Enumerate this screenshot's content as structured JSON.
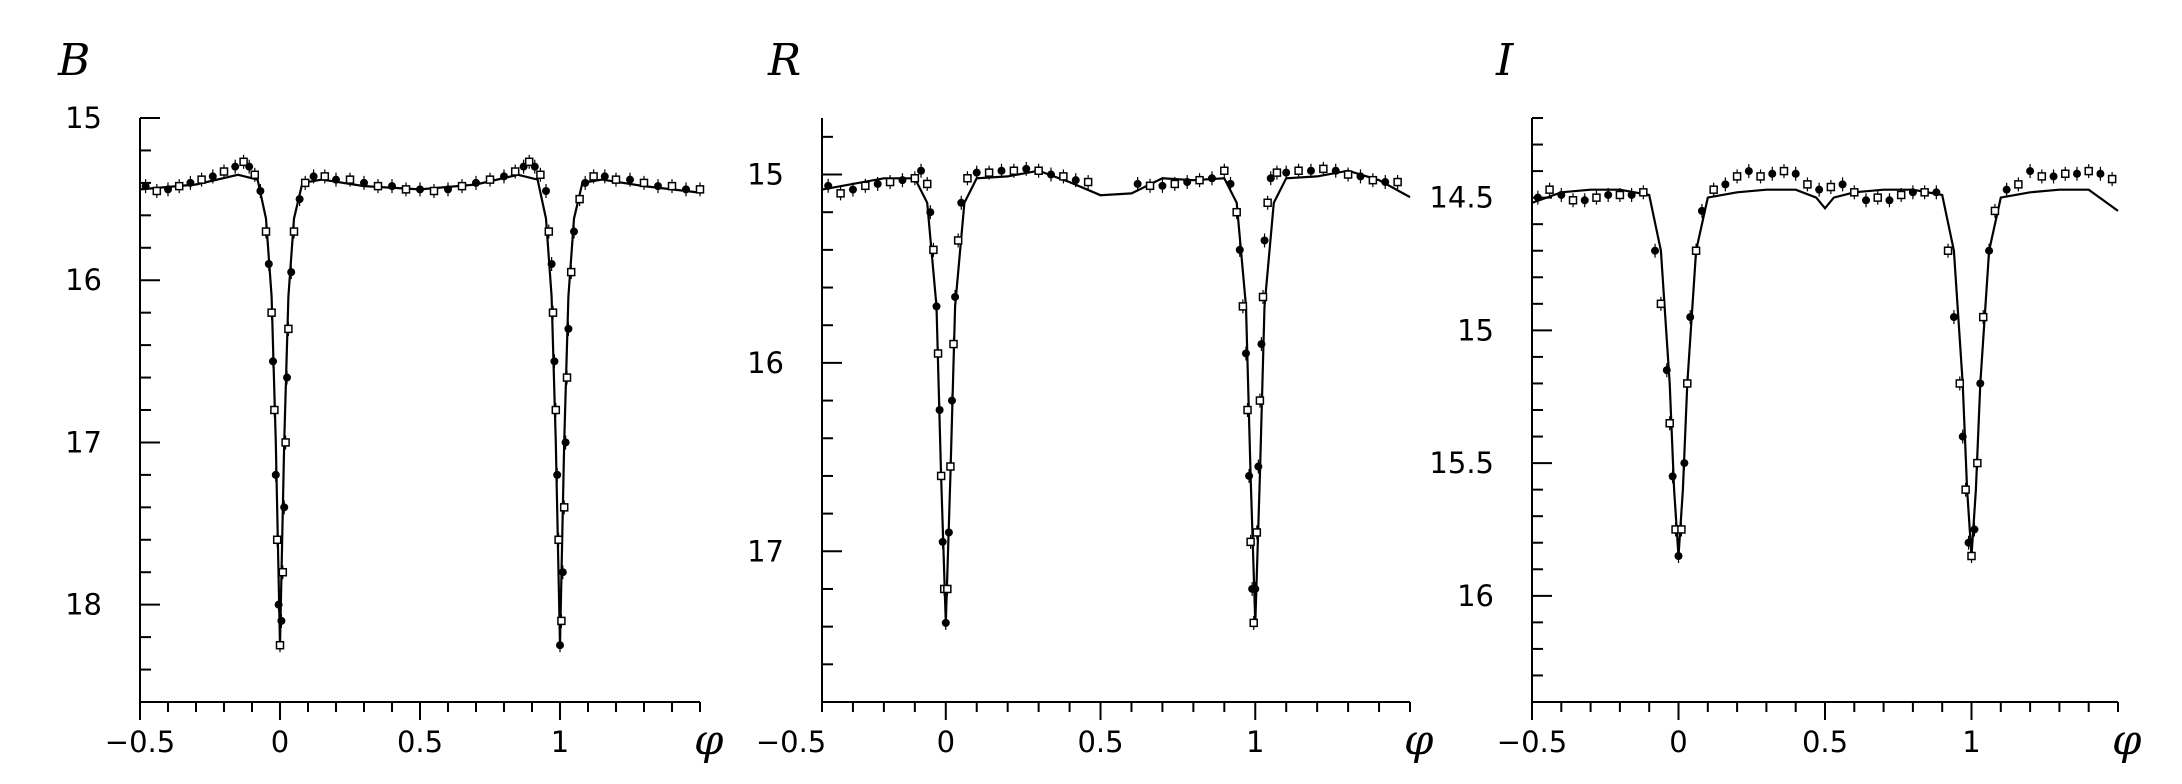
{
  "chart_data": [
    {
      "type": "scatter",
      "title": "B",
      "xlabel": "φ",
      "ylabel": "",
      "xlim": [
        -0.5,
        1.5
      ],
      "ylim": [
        18.6,
        15
      ],
      "y_inverted": true,
      "x_ticks": [
        -0.5,
        0,
        0.5,
        1
      ],
      "x_tick_labels": [
        "−0.5",
        "0",
        "0.5",
        "1"
      ],
      "y_ticks": [
        15,
        16,
        17,
        18
      ],
      "y_tick_labels": [
        "15",
        "16",
        "17",
        "18"
      ],
      "grid": false,
      "series": [
        {
          "marker": "points",
          "x": [
            -0.48,
            -0.44,
            -0.4,
            -0.36,
            -0.32,
            -0.28,
            -0.24,
            -0.2,
            -0.16,
            -0.13,
            -0.11,
            -0.09,
            -0.07,
            -0.05,
            -0.04,
            -0.03,
            -0.025,
            -0.02,
            -0.015,
            -0.01,
            -0.005,
            0,
            0.005,
            0.01,
            0.015,
            0.02,
            0.025,
            0.03,
            0.04,
            0.05,
            0.07,
            0.09,
            0.12,
            0.16,
            0.2,
            0.25,
            0.3,
            0.35,
            0.4,
            0.45,
            0.5,
            0.55,
            0.6,
            0.65,
            0.7,
            0.75,
            0.8,
            0.84,
            0.87,
            0.89,
            0.91,
            0.93,
            0.95,
            0.96,
            0.97,
            0.975,
            0.98,
            0.985,
            0.99,
            0.995,
            1,
            1.005,
            1.01,
            1.015,
            1.02,
            1.025,
            1.03,
            1.04,
            1.05,
            1.07,
            1.09,
            1.12,
            1.16,
            1.2,
            1.25,
            1.3,
            1.35,
            1.4,
            1.45,
            1.5
          ],
          "y": [
            15.42,
            15.45,
            15.44,
            15.42,
            15.4,
            15.38,
            15.36,
            15.33,
            15.3,
            15.27,
            15.3,
            15.35,
            15.45,
            15.7,
            15.9,
            16.2,
            16.5,
            16.8,
            17.2,
            17.6,
            18,
            18.25,
            18.1,
            17.8,
            17.4,
            17,
            16.6,
            16.3,
            15.95,
            15.7,
            15.5,
            15.4,
            15.36,
            15.36,
            15.38,
            15.38,
            15.4,
            15.42,
            15.42,
            15.44,
            15.44,
            15.45,
            15.44,
            15.42,
            15.4,
            15.38,
            15.36,
            15.33,
            15.3,
            15.27,
            15.3,
            15.35,
            15.45,
            15.7,
            15.9,
            16.2,
            16.5,
            16.8,
            17.2,
            17.6,
            18.25,
            18.1,
            17.8,
            17.4,
            17,
            16.6,
            16.3,
            15.95,
            15.7,
            15.5,
            15.4,
            15.36,
            15.36,
            15.38,
            15.38,
            15.4,
            15.42,
            15.42,
            15.44,
            15.44
          ]
        },
        {
          "marker": "line",
          "x": [
            -0.5,
            -0.3,
            -0.15,
            -0.08,
            -0.05,
            -0.03,
            -0.015,
            0,
            0.015,
            0.03,
            0.05,
            0.08,
            0.15,
            0.3,
            0.5,
            0.7,
            0.85,
            0.92,
            0.95,
            0.97,
            0.985,
            1,
            1.015,
            1.03,
            1.05,
            1.08,
            1.15,
            1.3,
            1.5
          ],
          "y": [
            15.44,
            15.41,
            15.35,
            15.38,
            15.62,
            16.1,
            17,
            18.25,
            17,
            16.1,
            15.62,
            15.4,
            15.38,
            15.42,
            15.44,
            15.41,
            15.35,
            15.38,
            15.62,
            16.1,
            17,
            18.25,
            17,
            16.1,
            15.62,
            15.4,
            15.38,
            15.42,
            15.46
          ]
        }
      ]
    },
    {
      "type": "scatter",
      "title": "R",
      "xlabel": "φ",
      "ylabel": "",
      "xlim": [
        -0.4,
        1.5
      ],
      "ylim": [
        17.8,
        14.7
      ],
      "y_inverted": true,
      "x_ticks": [
        -0.5,
        0,
        0.5,
        1
      ],
      "x_tick_labels": [
        "−0.5",
        "0",
        "0.5",
        "1"
      ],
      "y_ticks": [
        15,
        16,
        17
      ],
      "y_tick_labels": [
        "15",
        "16",
        "17"
      ],
      "grid": false,
      "series": [
        {
          "marker": "points",
          "x": [
            -0.38,
            -0.34,
            -0.3,
            -0.26,
            -0.22,
            -0.18,
            -0.14,
            -0.1,
            -0.08,
            -0.06,
            -0.05,
            -0.04,
            -0.03,
            -0.025,
            -0.02,
            -0.015,
            -0.01,
            -0.005,
            0,
            0.005,
            0.01,
            0.015,
            0.02,
            0.025,
            0.03,
            0.04,
            0.05,
            0.07,
            0.1,
            0.14,
            0.18,
            0.22,
            0.26,
            0.3,
            0.34,
            0.38,
            0.42,
            0.46,
            0.62,
            0.66,
            0.7,
            0.74,
            0.78,
            0.82,
            0.86,
            0.9,
            0.92,
            0.94,
            0.95,
            0.96,
            0.97,
            0.975,
            0.98,
            0.985,
            0.99,
            0.995,
            1,
            1.005,
            1.01,
            1.015,
            1.02,
            1.025,
            1.03,
            1.04,
            1.05,
            1.07,
            1.1,
            1.14,
            1.18,
            1.22,
            1.26,
            1.3,
            1.34,
            1.38,
            1.42,
            1.46
          ],
          "y": [
            15.06,
            15.1,
            15.08,
            15.06,
            15.05,
            15.04,
            15.03,
            15.02,
            14.98,
            15.05,
            15.2,
            15.4,
            15.7,
            15.95,
            16.25,
            16.6,
            16.95,
            17.2,
            17.38,
            17.2,
            16.9,
            16.55,
            16.2,
            15.9,
            15.65,
            15.35,
            15.15,
            15.02,
            14.99,
            14.99,
            14.98,
            14.98,
            14.97,
            14.98,
            15.0,
            15.01,
            15.03,
            15.04,
            15.05,
            15.06,
            15.06,
            15.05,
            15.04,
            15.03,
            15.02,
            14.98,
            15.05,
            15.2,
            15.4,
            15.7,
            15.95,
            16.25,
            16.6,
            16.95,
            17.2,
            17.38,
            17.2,
            16.9,
            16.55,
            16.2,
            15.9,
            15.65,
            15.35,
            15.15,
            15.02,
            14.99,
            14.99,
            14.98,
            14.98,
            14.97,
            14.98,
            15.0,
            15.01,
            15.03,
            15.04,
            15.04
          ]
        },
        {
          "marker": "line",
          "x": [
            -0.4,
            -0.3,
            -0.2,
            -0.1,
            -0.06,
            -0.03,
            -0.015,
            0,
            0.015,
            0.03,
            0.06,
            0.1,
            0.2,
            0.3,
            0.4,
            0.5,
            0.6,
            0.7,
            0.8,
            0.9,
            0.94,
            0.97,
            0.985,
            1,
            1.015,
            1.03,
            1.06,
            1.1,
            1.2,
            1.3,
            1.4,
            1.5
          ],
          "y": [
            15.08,
            15.05,
            15.02,
            15.02,
            15.15,
            15.7,
            16.6,
            17.38,
            16.6,
            15.7,
            15.15,
            15.02,
            15.01,
            14.98,
            15.04,
            15.11,
            15.1,
            15.02,
            15.03,
            15.02,
            15.15,
            15.7,
            16.6,
            17.38,
            16.6,
            15.7,
            15.15,
            15.02,
            15.01,
            14.98,
            15.03,
            15.12
          ]
        }
      ]
    },
    {
      "type": "scatter",
      "title": "I",
      "xlabel": "φ",
      "ylabel": "",
      "xlim": [
        -0.5,
        1.5
      ],
      "ylim": [
        16.4,
        14.2
      ],
      "y_inverted": true,
      "x_ticks": [
        -0.5,
        0,
        0.5,
        1
      ],
      "x_tick_labels": [
        "−0.5",
        "0",
        "0.5",
        "1"
      ],
      "y_ticks": [
        14.5,
        15,
        15.5,
        16
      ],
      "y_tick_labels": [
        "14.5",
        "15",
        "15.5",
        "16"
      ],
      "grid": false,
      "series": [
        {
          "marker": "points",
          "x": [
            -0.48,
            -0.44,
            -0.4,
            -0.36,
            -0.32,
            -0.28,
            -0.24,
            -0.2,
            -0.16,
            -0.12,
            -0.08,
            -0.06,
            -0.04,
            -0.03,
            -0.02,
            -0.01,
            0,
            0.01,
            0.02,
            0.03,
            0.04,
            0.06,
            0.08,
            0.12,
            0.16,
            0.2,
            0.24,
            0.28,
            0.32,
            0.36,
            0.4,
            0.44,
            0.48,
            0.52,
            0.56,
            0.6,
            0.64,
            0.68,
            0.72,
            0.76,
            0.8,
            0.84,
            0.88,
            0.92,
            0.94,
            0.96,
            0.97,
            0.98,
            0.99,
            1,
            1.01,
            1.02,
            1.03,
            1.04,
            1.06,
            1.08,
            1.12,
            1.16,
            1.2,
            1.24,
            1.28,
            1.32,
            1.36,
            1.4,
            1.44,
            1.48
          ],
          "y": [
            14.5,
            14.47,
            14.49,
            14.51,
            14.51,
            14.5,
            14.49,
            14.49,
            14.49,
            14.48,
            14.7,
            14.9,
            15.15,
            15.35,
            15.55,
            15.75,
            15.85,
            15.75,
            15.5,
            15.2,
            14.95,
            14.7,
            14.55,
            14.47,
            14.45,
            14.42,
            14.4,
            14.42,
            14.41,
            14.4,
            14.41,
            14.45,
            14.47,
            14.46,
            14.45,
            14.48,
            14.51,
            14.5,
            14.51,
            14.49,
            14.48,
            14.48,
            14.48,
            14.7,
            14.95,
            15.2,
            15.4,
            15.6,
            15.8,
            15.85,
            15.75,
            15.5,
            15.2,
            14.95,
            14.7,
            14.55,
            14.47,
            14.45,
            14.4,
            14.42,
            14.42,
            14.41,
            14.41,
            14.4,
            14.41,
            14.43
          ]
        },
        {
          "marker": "line",
          "x": [
            -0.5,
            -0.4,
            -0.3,
            -0.2,
            -0.1,
            -0.06,
            -0.03,
            -0.015,
            0,
            0.015,
            0.03,
            0.06,
            0.1,
            0.2,
            0.3,
            0.4,
            0.47,
            0.5,
            0.53,
            0.6,
            0.7,
            0.8,
            0.9,
            0.94,
            0.97,
            0.985,
            1,
            1.015,
            1.03,
            1.06,
            1.1,
            1.2,
            1.3,
            1.4,
            1.5
          ],
          "y": [
            14.52,
            14.48,
            14.47,
            14.47,
            14.49,
            14.7,
            15.2,
            15.6,
            15.85,
            15.6,
            15.2,
            14.7,
            14.5,
            14.48,
            14.47,
            14.47,
            14.5,
            14.54,
            14.5,
            14.48,
            14.47,
            14.47,
            14.49,
            14.7,
            15.2,
            15.6,
            15.85,
            15.6,
            15.2,
            14.7,
            14.5,
            14.48,
            14.47,
            14.47,
            14.55
          ]
        }
      ]
    }
  ]
}
